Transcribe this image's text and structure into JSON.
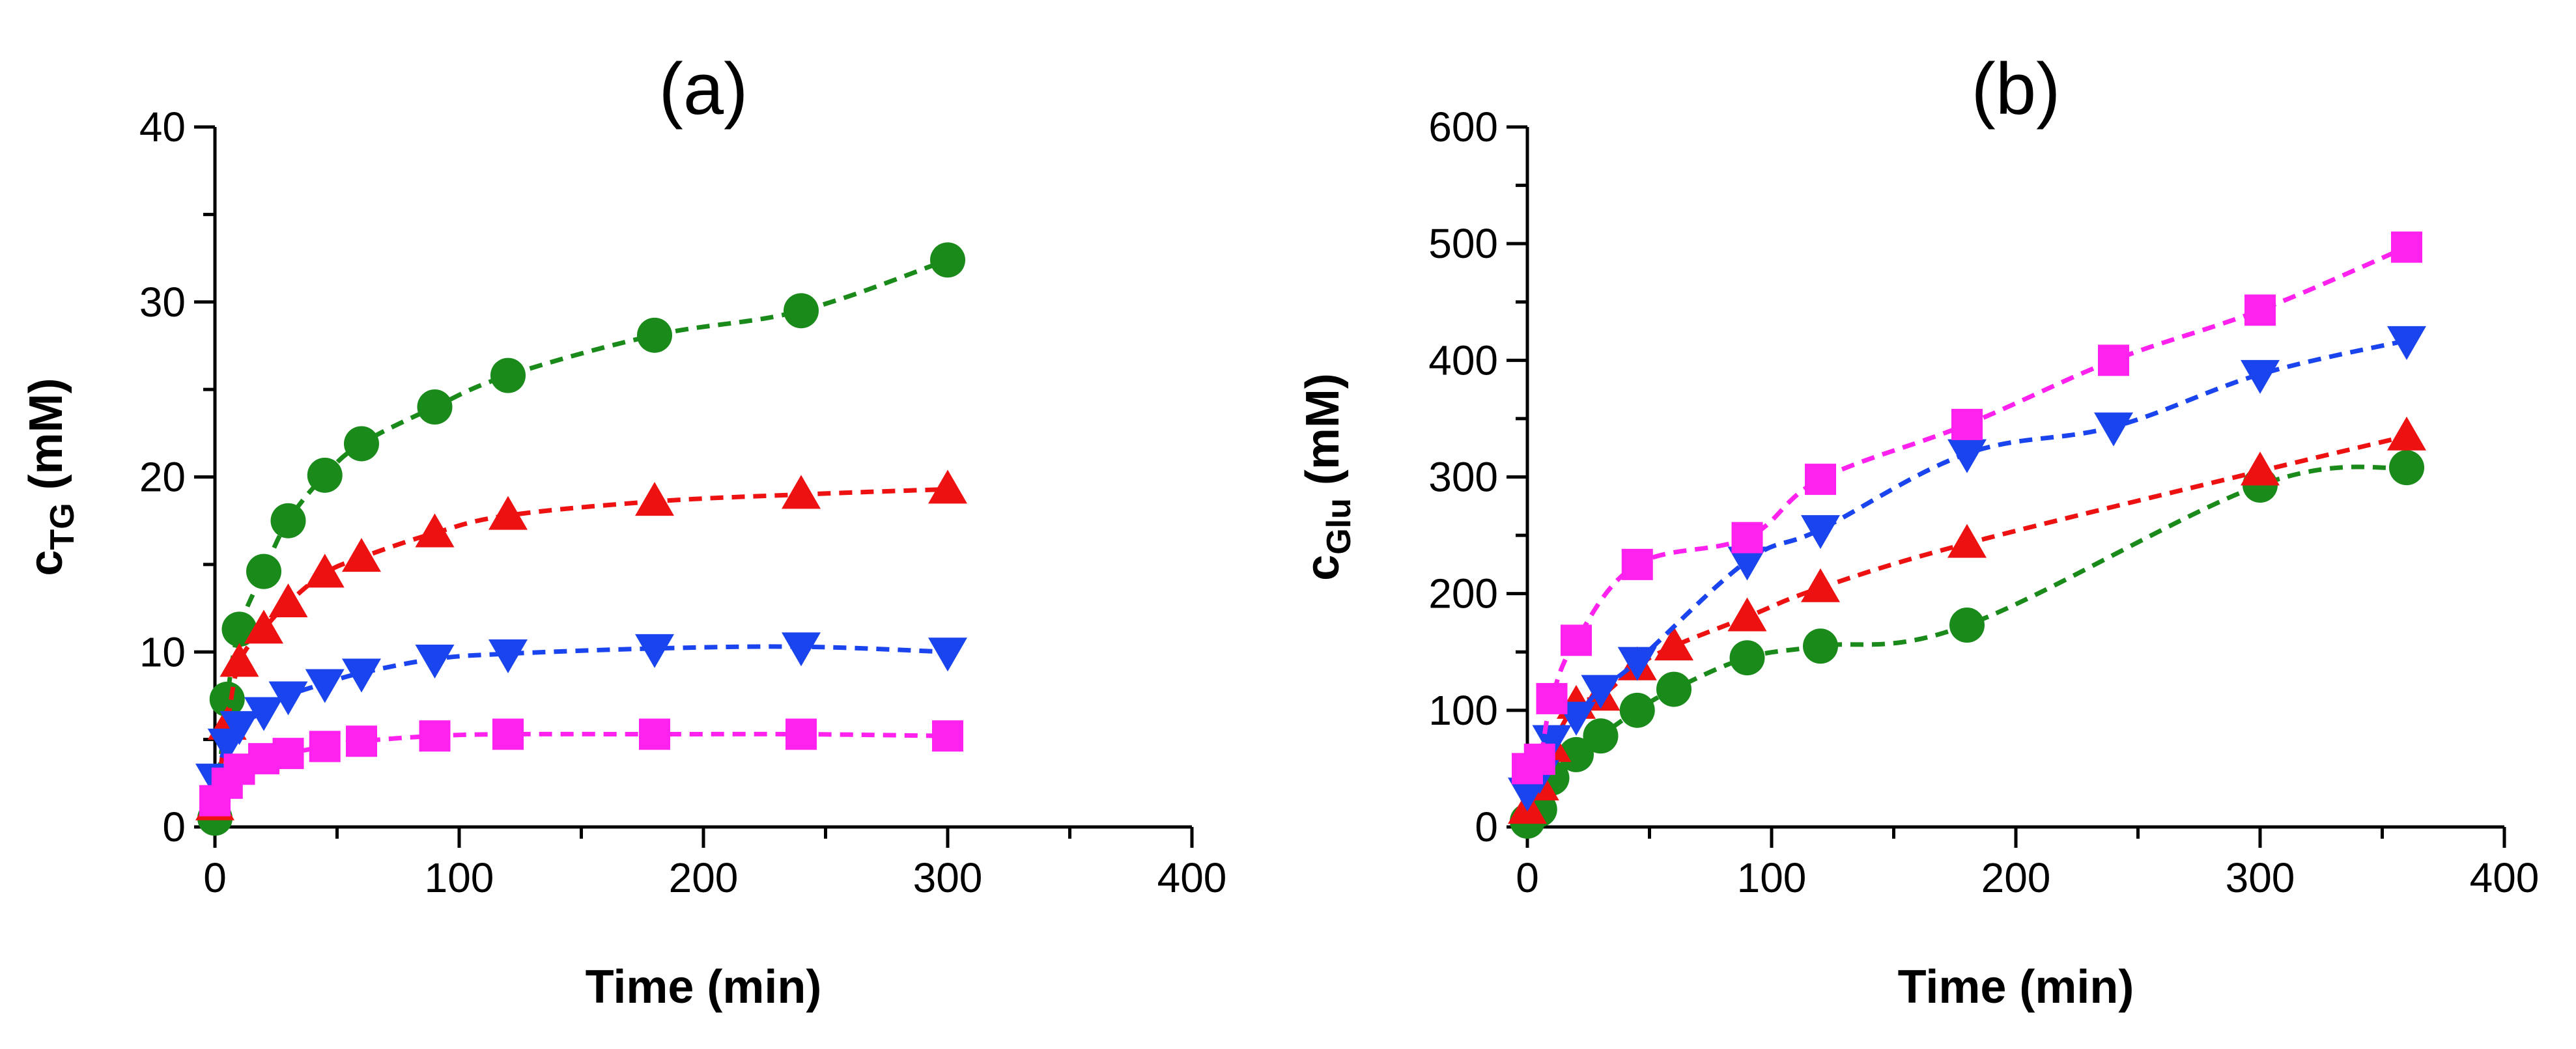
{
  "chart_data": [
    {
      "type": "scatter",
      "title": "(a)",
      "xlabel": "Time (min)",
      "ylabel_main": "c",
      "ylabel_sub": "TG",
      "ylabel_unit": " (mM)",
      "xlim": [
        0,
        400
      ],
      "ylim": [
        0,
        40
      ],
      "xticks": [
        0,
        100,
        200,
        300,
        400
      ],
      "yticks": [
        0,
        10,
        20,
        30,
        40
      ],
      "xtick_labels": [
        "0",
        "100",
        "200",
        "300",
        "400"
      ],
      "ytick_labels": [
        "0",
        "10",
        "20",
        "30",
        "40"
      ],
      "grid": false,
      "legend": "none",
      "series": [
        {
          "name": "green circles",
          "marker": "circle",
          "color": "#1a8a1a",
          "x": [
            0,
            5,
            10,
            20,
            30,
            45,
            60,
            90,
            120,
            180,
            240,
            300
          ],
          "y": [
            0.5,
            7.3,
            11.3,
            14.6,
            17.5,
            20.1,
            21.9,
            24.0,
            25.8,
            28.1,
            29.5,
            32.4
          ]
        },
        {
          "name": "red triangles",
          "marker": "triangle-up",
          "color": "#ee1111",
          "x": [
            0,
            5,
            10,
            20,
            30,
            45,
            60,
            90,
            120,
            180,
            240,
            300
          ],
          "y": [
            1.2,
            5.8,
            9.4,
            11.3,
            12.8,
            14.5,
            15.4,
            16.8,
            17.8,
            18.6,
            19.0,
            19.3
          ]
        },
        {
          "name": "blue triangles",
          "marker": "triangle-down",
          "color": "#1a44ee",
          "x": [
            0,
            5,
            10,
            20,
            30,
            45,
            60,
            90,
            120,
            180,
            240,
            300
          ],
          "y": [
            2.8,
            4.8,
            5.8,
            6.6,
            7.5,
            8.2,
            8.8,
            9.6,
            9.9,
            10.2,
            10.3,
            10.0
          ]
        },
        {
          "name": "magenta squares",
          "marker": "square",
          "color": "#ff22ee",
          "x": [
            0,
            5,
            10,
            20,
            30,
            45,
            60,
            90,
            120,
            180,
            240,
            300
          ],
          "y": [
            1.5,
            2.5,
            3.3,
            3.9,
            4.2,
            4.6,
            4.9,
            5.2,
            5.3,
            5.3,
            5.3,
            5.2
          ]
        }
      ]
    },
    {
      "type": "scatter",
      "title": "(b)",
      "xlabel": "Time (min)",
      "ylabel_main": "c",
      "ylabel_sub": "Glu",
      "ylabel_unit": " (mM)",
      "xlim": [
        0,
        400
      ],
      "ylim": [
        0,
        600
      ],
      "xticks": [
        0,
        100,
        200,
        300,
        400
      ],
      "yticks": [
        0,
        100,
        200,
        300,
        400,
        500,
        600
      ],
      "xtick_labels": [
        "0",
        "100",
        "200",
        "300",
        "400"
      ],
      "ytick_labels": [
        "0",
        "100",
        "200",
        "300",
        "400",
        "500",
        "600"
      ],
      "grid": false,
      "legend": "none",
      "series": [
        {
          "name": "green circles",
          "marker": "circle",
          "color": "#1a8a1a",
          "x": [
            0,
            5,
            10,
            20,
            30,
            45,
            60,
            90,
            120,
            180,
            300,
            360
          ],
          "y": [
            5,
            15,
            42,
            62,
            78,
            100,
            118,
            145,
            155,
            173,
            293,
            308
          ]
        },
        {
          "name": "red triangles",
          "marker": "triangle-up",
          "color": "#ee1111",
          "x": [
            0,
            5,
            10,
            20,
            30,
            45,
            60,
            90,
            120,
            180,
            300,
            360
          ],
          "y": [
            15,
            35,
            68,
            105,
            112,
            138,
            155,
            180,
            205,
            243,
            305,
            335
          ]
        },
        {
          "name": "blue triangles",
          "marker": "triangle-down",
          "color": "#1a44ee",
          "x": [
            0,
            5,
            10,
            20,
            30,
            45,
            90,
            120,
            180,
            240,
            300,
            360
          ],
          "y": [
            30,
            45,
            75,
            95,
            118,
            142,
            228,
            255,
            320,
            343,
            388,
            417
          ]
        },
        {
          "name": "magenta squares",
          "marker": "square",
          "color": "#ff22ee",
          "x": [
            0,
            5,
            10,
            20,
            45,
            90,
            120,
            180,
            240,
            300,
            360
          ],
          "y": [
            50,
            58,
            110,
            160,
            225,
            248,
            298,
            345,
            400,
            443,
            497
          ]
        }
      ]
    }
  ]
}
